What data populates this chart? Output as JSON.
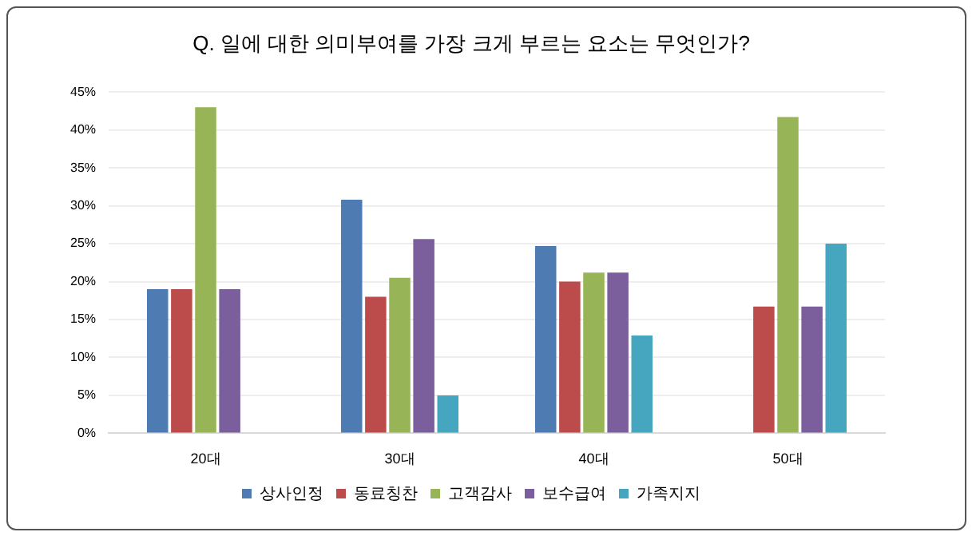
{
  "chart_data": {
    "type": "bar",
    "title": "Q. 일에 대한 의미부여를 가장 크게 부르는 요소는 무엇인가?",
    "categories": [
      "20대",
      "30대",
      "40대",
      "50대"
    ],
    "series": [
      {
        "name": "상사인정",
        "color": "#4f7bb3",
        "values": [
          19,
          30.8,
          24.7,
          null
        ]
      },
      {
        "name": "동료칭찬",
        "color": "#bc4c4b",
        "values": [
          19,
          18,
          20,
          16.7
        ]
      },
      {
        "name": "고객감사",
        "color": "#97b556",
        "values": [
          43,
          20.5,
          21.2,
          41.7
        ]
      },
      {
        "name": "보수급여",
        "color": "#7a5f9c",
        "values": [
          19,
          25.6,
          21.2,
          16.7
        ]
      },
      {
        "name": "가족지지",
        "color": "#46a6bf",
        "values": [
          null,
          5,
          12.9,
          25
        ]
      }
    ],
    "ylim": [
      0,
      45
    ],
    "yticks": [
      {
        "value": 0,
        "label": "0%"
      },
      {
        "value": 5,
        "label": "5%"
      },
      {
        "value": 10,
        "label": "10%"
      },
      {
        "value": 15,
        "label": "15%"
      },
      {
        "value": 20,
        "label": "20%"
      },
      {
        "value": 25,
        "label": "25%"
      },
      {
        "value": 30,
        "label": "30%"
      },
      {
        "value": 35,
        "label": "35%"
      },
      {
        "value": 40,
        "label": "40%"
      },
      {
        "value": 45,
        "label": "45%"
      }
    ],
    "grid": "y",
    "legend": "bottom"
  }
}
